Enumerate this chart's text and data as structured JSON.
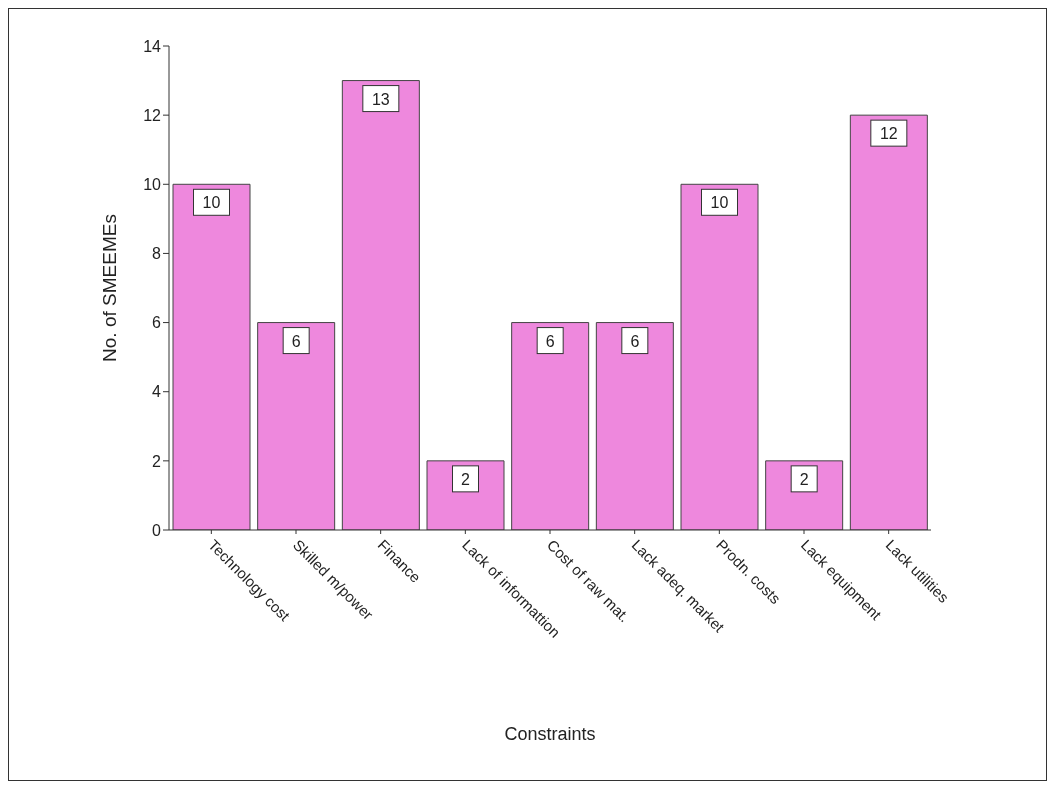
{
  "chart_data": {
    "type": "bar",
    "xlabel": "Constraints",
    "ylabel": "No. of SMEEMEs",
    "categories": [
      "Technology cost",
      "Skilled m/power",
      "Finance",
      "Lack of informattion",
      "Cost of raw mat.",
      "Lack adeq. market",
      "Prodn. costs",
      "Lack equipment",
      "Lack utilities"
    ],
    "values": [
      10,
      6,
      13,
      2,
      6,
      6,
      10,
      2,
      12
    ],
    "color": "#ee88dd",
    "ylim": [
      0,
      14
    ],
    "yticks": [
      0,
      2,
      4,
      6,
      8,
      10,
      12,
      14
    ],
    "data_labels": true
  }
}
